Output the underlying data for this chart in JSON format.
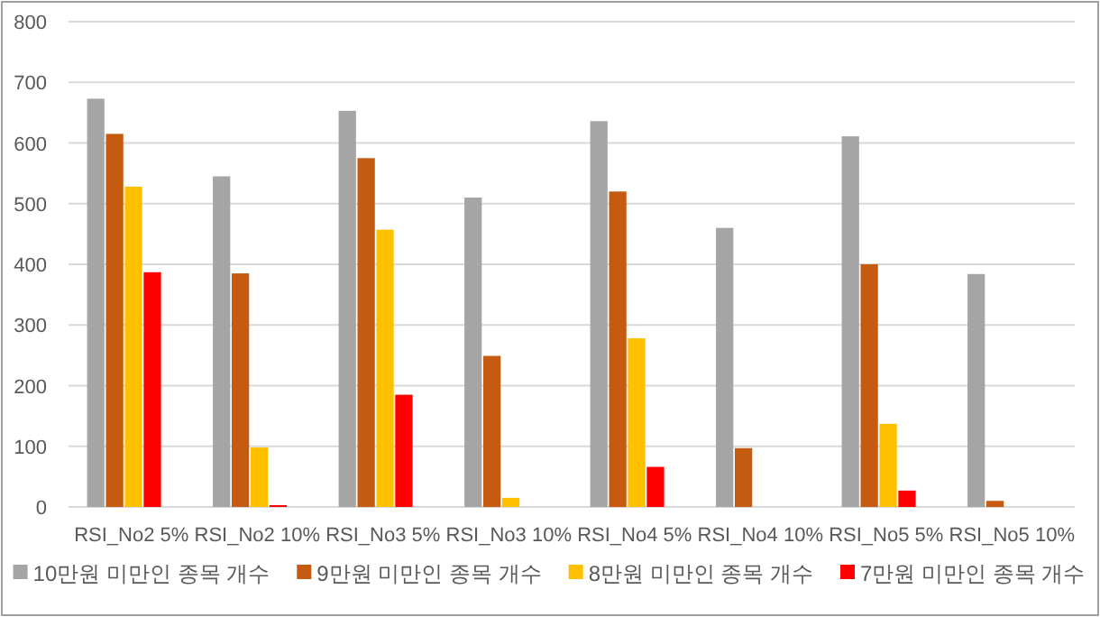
{
  "chart_data": {
    "type": "bar",
    "categories": [
      "RSI_No2 5%",
      "RSI_No2 10%",
      "RSI_No3 5%",
      "RSI_No3 10%",
      "RSI_No4 5%",
      "RSI_No4 10%",
      "RSI_No5 5%",
      "RSI_No5 10%"
    ],
    "series": [
      {
        "name": "10만원 미만인 종목 개수",
        "color": "#a5a5a5",
        "values": [
          673,
          545,
          653,
          510,
          636,
          460,
          611,
          384
        ]
      },
      {
        "name": "9만원 미만인 종목 개수",
        "color": "#c55a11",
        "values": [
          615,
          385,
          575,
          249,
          520,
          97,
          400,
          10
        ]
      },
      {
        "name": "8만원 미만인 종목 개수",
        "color": "#ffc000",
        "values": [
          528,
          98,
          457,
          15,
          278,
          0,
          137,
          0
        ]
      },
      {
        "name": "7만원 미만인 종목 개수",
        "color": "#ff0000",
        "values": [
          387,
          3,
          185,
          0,
          66,
          0,
          27,
          0
        ]
      }
    ],
    "ylim": [
      0,
      800
    ],
    "yticks": [
      0,
      100,
      200,
      300,
      400,
      500,
      600,
      700,
      800
    ],
    "grid": "y",
    "legend": "bottom"
  }
}
